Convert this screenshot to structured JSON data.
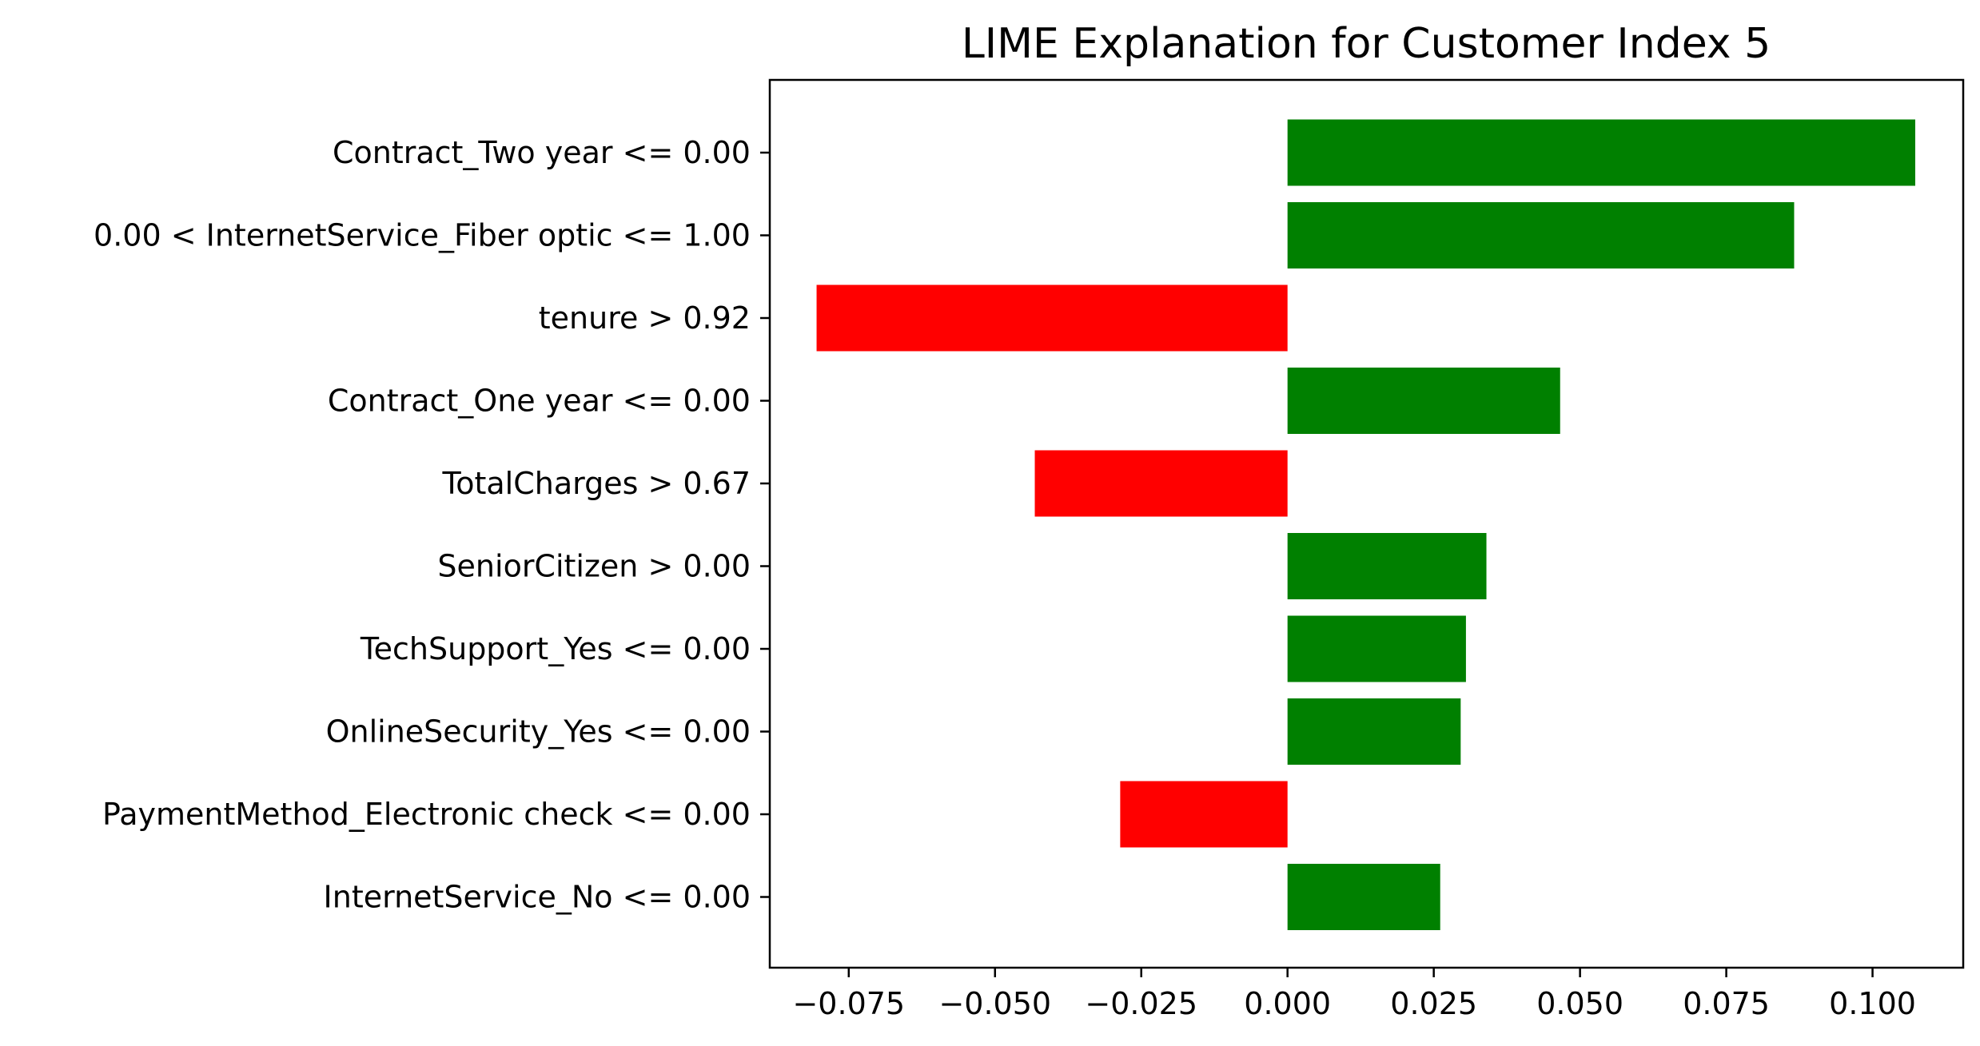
{
  "chart_data": {
    "type": "bar",
    "orientation": "horizontal",
    "title": "LIME Explanation for Customer Index 5",
    "xlabel": "",
    "ylabel": "",
    "xlim": [
      -0.0885,
      0.1155
    ],
    "xticks": [
      -0.075,
      -0.05,
      -0.025,
      0.0,
      0.025,
      0.05,
      0.075,
      0.1
    ],
    "xtick_labels": [
      "−0.075",
      "−0.050",
      "−0.025",
      "0.000",
      "0.025",
      "0.050",
      "0.075",
      "0.100"
    ],
    "grid": false,
    "legend": "none",
    "positive_color": "#008000",
    "negative_color": "#ff0000",
    "categories": [
      "Contract_Two year <= 0.00",
      "0.00 < InternetService_Fiber optic <= 1.00",
      "tenure > 0.92",
      "Contract_One year <= 0.00",
      "TotalCharges > 0.67",
      "SeniorCitizen > 0.00",
      "TechSupport_Yes <= 0.00",
      "OnlineSecurity_Yes <= 0.00",
      "PaymentMethod_Electronic check <= 0.00",
      "InternetService_No <= 0.00"
    ],
    "values": [
      0.1073,
      0.0866,
      -0.0805,
      0.0466,
      -0.0432,
      0.034,
      0.0305,
      0.0296,
      -0.0286,
      0.0261
    ]
  }
}
